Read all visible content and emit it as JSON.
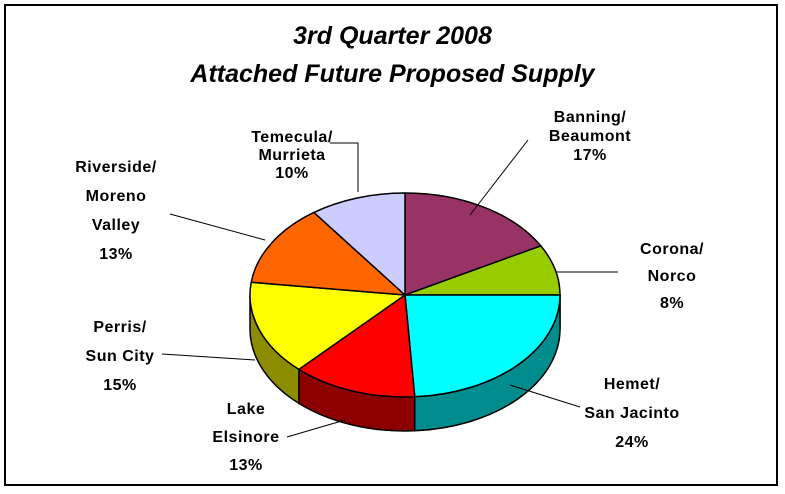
{
  "chart_data": {
    "type": "pie",
    "title": "3rd Quarter 2008",
    "subtitle": "Attached Future Proposed Supply",
    "categories": [
      "Banning/\nBeaumont",
      "Corona/\nNorco",
      "Hemet/\nSan Jacinto",
      "Lake\nElsinore",
      "Perris/\nSun City",
      "Riverside/\nMoreno\nValley",
      "Temecula/\nMurrieta"
    ],
    "values": [
      17,
      8,
      24,
      13,
      15,
      13,
      10
    ],
    "value_labels": [
      "17%",
      "8%",
      "24%",
      "13%",
      "15%",
      "13%",
      "10%"
    ],
    "colors": [
      "#993366",
      "#99cc00",
      "#00ffff",
      "#ff0000",
      "#ffff00",
      "#ff6600",
      "#ccccff"
    ]
  }
}
